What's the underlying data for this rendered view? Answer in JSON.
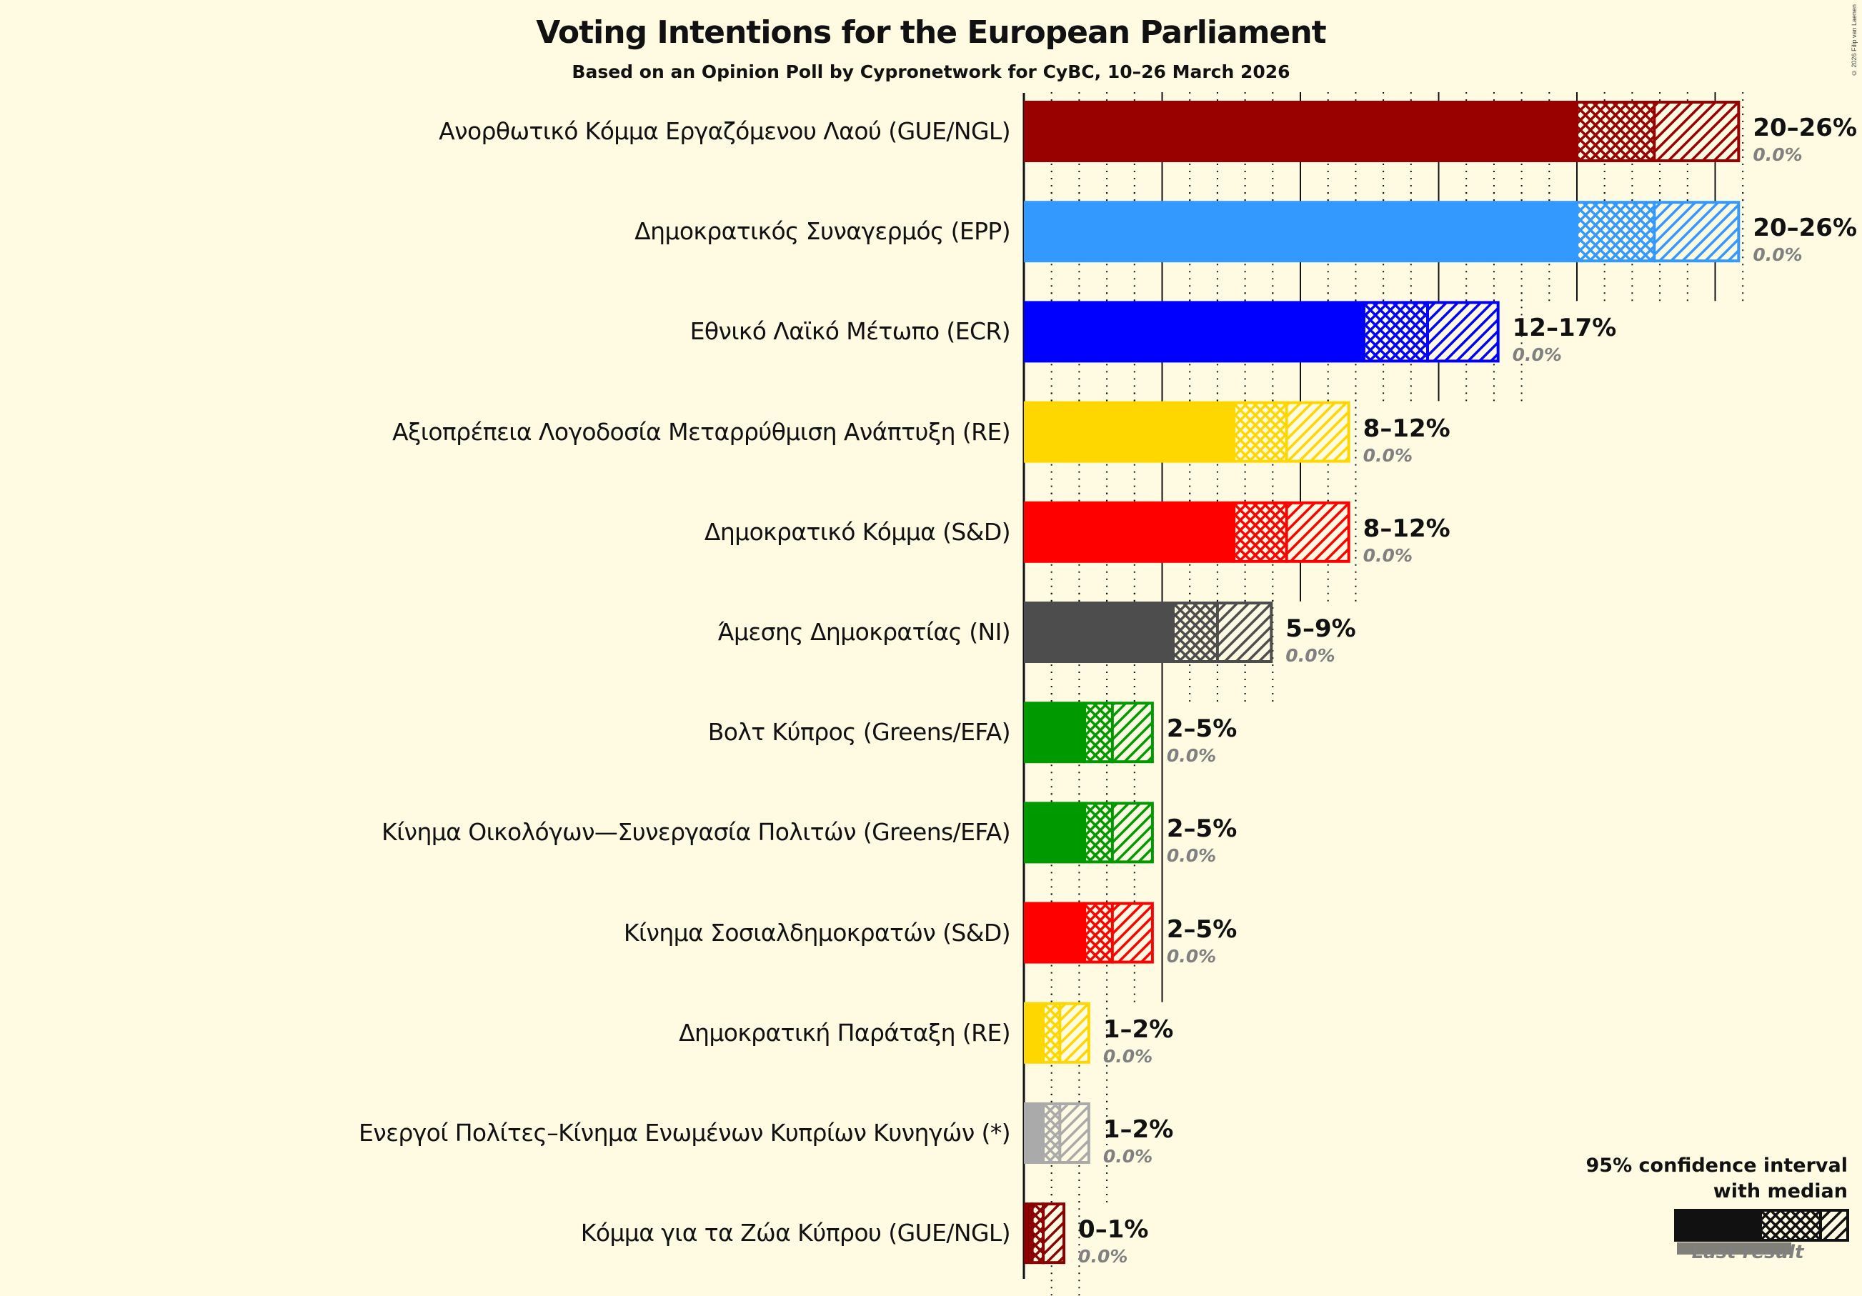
{
  "header": {
    "title": "Voting Intentions for the European Parliament",
    "subtitle": "Based on an Opinion Poll by Cypronetwork for CyBC, 10–26 March 2026",
    "copyright": "© 2026 Filip van Laenen"
  },
  "legend": {
    "title_line1": "95% confidence interval",
    "title_line2": "with median",
    "last_result": "Last result"
  },
  "chart_data": {
    "type": "bar",
    "orientation": "horizontal",
    "title": "Voting Intentions for the European Parliament",
    "subtitle": "Based on an Opinion Poll by Cypronetwork for CyBC, 10–26 March 2026",
    "xlabel": "",
    "ylabel": "",
    "xlim": [
      0,
      27
    ],
    "grid": {
      "major_every": 5,
      "minor_every": 1
    },
    "legend_position": "bottom-right",
    "categories": [
      "Ανορθωτικό Κόμμα Εργαζόμενου Λαού (GUE/NGL)",
      "Δημοκρατικός Συναγερμός (EPP)",
      "Εθνικό Λαϊκό Μέτωπο (ECR)",
      "Αξιοπρέπεια Λογοδοσία Μεταρρύθμιση Ανάπτυξη (RE)",
      "Δημοκρατικό Κόμμα (S&D)",
      "Άμεσης Δημοκρατίας (NI)",
      "Βολτ Κύπρος (Greens/EFA)",
      "Κίνημα Οικολόγων—Συνεργασία Πολιτών (Greens/EFA)",
      "Κίνημα Σοσιαλδημοκρατών (S&D)",
      "Δημοκρατική Παράταξη (RE)",
      "Ενεργοί Πολίτες–Κίνημα Ενωμένων Κυπρίων Κυνηγών (*)",
      "Κόμμα για τα Ζώα Κύπρου (GUE/NGL)"
    ],
    "series": [
      {
        "name": "CI low",
        "values": [
          20.0,
          20.0,
          12.3,
          7.6,
          7.6,
          5.4,
          2.2,
          2.2,
          2.2,
          0.7,
          0.7,
          0.3
        ]
      },
      {
        "name": "Median",
        "values": [
          22.8,
          22.8,
          14.6,
          9.5,
          9.5,
          7.0,
          3.2,
          3.2,
          3.2,
          1.3,
          1.3,
          0.7
        ]
      },
      {
        "name": "CI high",
        "values": [
          25.9,
          25.9,
          17.2,
          11.8,
          11.8,
          9.0,
          4.7,
          4.7,
          4.7,
          2.4,
          2.4,
          1.5
        ]
      },
      {
        "name": "Last result",
        "values": [
          0.0,
          0.0,
          0.0,
          0.0,
          0.0,
          0.0,
          0.0,
          0.0,
          0.0,
          0.0,
          0.0,
          0.0
        ]
      }
    ],
    "range_labels": [
      "20–26%",
      "20–26%",
      "12–17%",
      "8–12%",
      "8–12%",
      "5–9%",
      "2–5%",
      "2–5%",
      "2–5%",
      "1–2%",
      "1–2%",
      "0–1%"
    ],
    "last_result_labels": [
      "0.0%",
      "0.0%",
      "0.0%",
      "0.0%",
      "0.0%",
      "0.0%",
      "0.0%",
      "0.0%",
      "0.0%",
      "0.0%",
      "0.0%",
      "0.0%"
    ],
    "colors": [
      "#990000",
      "#3399ff",
      "#0000ff",
      "#ffd700",
      "#ff0000",
      "#4d4d4d",
      "#009900",
      "#009900",
      "#ff0000",
      "#ffd700",
      "#aaaaaa",
      "#8b0000"
    ]
  },
  "parties": [
    {
      "name": "Ανορθωτικό Κόμμα Εργαζόμενου Λαού (GUE/NGL)",
      "range": "20–26%",
      "last": "0.0%"
    },
    {
      "name": "Δημοκρατικός Συναγερμός (EPP)",
      "range": "20–26%",
      "last": "0.0%"
    },
    {
      "name": "Εθνικό Λαϊκό Μέτωπο (ECR)",
      "range": "12–17%",
      "last": "0.0%"
    },
    {
      "name": "Αξιοπρέπεια Λογοδοσία Μεταρρύθμιση Ανάπτυξη (RE)",
      "range": "8–12%",
      "last": "0.0%"
    },
    {
      "name": "Δημοκρατικό Κόμμα (S&D)",
      "range": "8–12%",
      "last": "0.0%"
    },
    {
      "name": "Άμεσης Δημοκρατίας (NI)",
      "range": "5–9%",
      "last": "0.0%"
    },
    {
      "name": "Βολτ Κύπρος (Greens/EFA)",
      "range": "2–5%",
      "last": "0.0%"
    },
    {
      "name": "Κίνημα Οικολόγων—Συνεργασία Πολιτών (Greens/EFA)",
      "range": "2–5%",
      "last": "0.0%"
    },
    {
      "name": "Κίνημα Σοσιαλδημοκρατών (S&D)",
      "range": "2–5%",
      "last": "0.0%"
    },
    {
      "name": "Δημοκρατική Παράταξη (RE)",
      "range": "1–2%",
      "last": "0.0%"
    },
    {
      "name": "Ενεργοί Πολίτες–Κίνημα Ενωμένων Κυπρίων Κυνηγών (*)",
      "range": "1–2%",
      "last": "0.0%"
    },
    {
      "name": "Κόμμα για τα Ζώα Κύπρου (GUE/NGL)",
      "range": "0–1%",
      "last": "0.0%"
    }
  ]
}
